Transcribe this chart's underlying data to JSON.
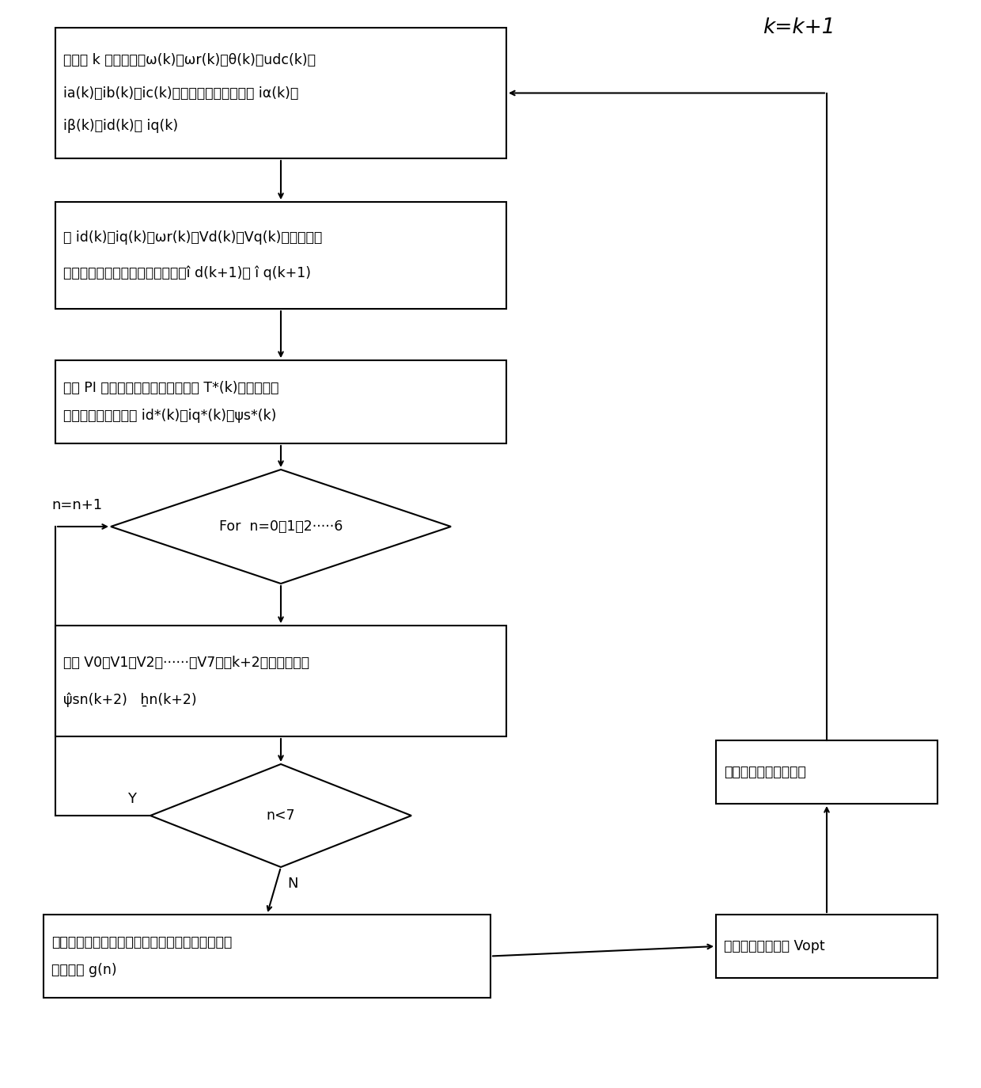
{
  "title": "k=k+1",
  "box1_line1": "采集第 k 个控制周期ω(k)、ωr(k)、θ(k)、udc(k)、",
  "box1_line2": "ia(k)、ib(k)、ic(k)，并进行坐标变换得到 iα(k)、",
  "box1_line3": "iβ(k)、id(k)和 iq(k)",
  "box2_line1": "将 id(k)、iq(k)、ωr(k)、Vd(k)、Vq(k)通过永磁同",
  "box2_line2": "步电机延时补唇模型公式变换得到î d(k+1)、 î q(k+1)",
  "box3_line1": "采用 PI 控制器输出电磁转矩期望値 T*(k)经过最大转",
  "box3_line2": "矩电流比的方法求出 id*(k)、iq*(k)、ψs*(k)",
  "d1_text": "For  n=0、1、2·····6",
  "box4_line1": "预测 V0、V1、V2、······、V7下第k+2个控制周期的",
  "box4_line2": "ψ̂sn(k+2)   ẖn(k+2)",
  "d2_text": "n<7",
  "box5_line1": "将期望磁链和转矩与预测値做差，排序编号并带入",
  "box5_line2": "评价函数 g(n)",
  "box6_text": "求出最优电压矢量 Vopt",
  "box7_text": "进行下一周期预测控制",
  "label_n1": "n=n+1",
  "label_Y": "Y",
  "label_N": "N"
}
